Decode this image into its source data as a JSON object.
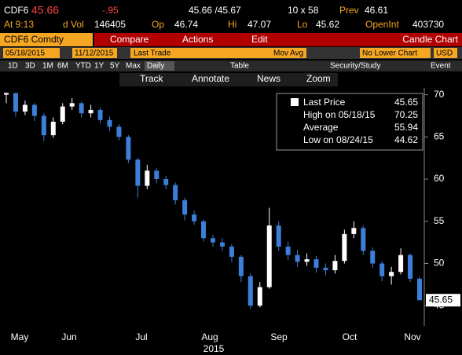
{
  "header": {
    "ticker": "CDF6",
    "last": "45.66",
    "change": "-.95",
    "bid_ask": "45.66 /45.67",
    "size": "10 x 58",
    "prev_label": "Prev",
    "prev": "46.61",
    "time": "At 9:13",
    "vol_label": "d Vol",
    "vol": "146405",
    "open_label": "Op",
    "open": "46.74",
    "high_label": "Hi",
    "high": "47.07",
    "low_label": "Lo",
    "low": "45.62",
    "oi_label": "OpenInt",
    "oi": "403730"
  },
  "toolbar": {
    "security": "CDF6 Comdty",
    "compare": "Compare",
    "actions": "Actions",
    "edit": "Edit",
    "chart_kind": "Candle Chart",
    "start": "05/18/2015",
    "end": "11/12/2015",
    "field": "Last Trade",
    "study": "Mov Avg",
    "lower": "No Lower Chart",
    "currency": "USD",
    "periods": [
      "1D",
      "3D",
      "1M",
      "6M",
      "YTD",
      "1Y",
      "5Y",
      "Max"
    ],
    "freq": "Daily",
    "table": "Table",
    "security_study": "Security/Study",
    "event": "Event",
    "tools": [
      "Track",
      "Annotate",
      "News",
      "Zoom"
    ]
  },
  "chart_data": {
    "type": "candlestick",
    "up_color": "#ffffff",
    "down_color": "#3b7fd9",
    "open": [
      70.0,
      70.2,
      68.0,
      68.8,
      67.5,
      65.2,
      66.8,
      68.6,
      69.0,
      67.8,
      68.2,
      67.0,
      66.2,
      65.0,
      62.3,
      59.2,
      61.0,
      60.0,
      59.3,
      57.5,
      55.8,
      55.0,
      53.0,
      52.5,
      52.0,
      50.8,
      48.5,
      45.0,
      47.2,
      54.5,
      52.0,
      51.0,
      50.2,
      50.5,
      49.5,
      49.2,
      50.3,
      53.5,
      54.2,
      51.5,
      50.0,
      48.5,
      49.0,
      51.0,
      48.2
    ],
    "high": [
      70.25,
      70.2,
      69.3,
      69.0,
      67.8,
      67.3,
      69.0,
      69.6,
      69.2,
      68.8,
      68.5,
      67.4,
      66.5,
      65.2,
      62.5,
      61.7,
      61.3,
      60.4,
      59.6,
      57.8,
      56.3,
      55.2,
      53.4,
      53.0,
      52.3,
      51.0,
      48.8,
      47.8,
      56.6,
      55.0,
      52.6,
      51.6,
      51.2,
      50.9,
      50.0,
      51.0,
      54.0,
      55.0,
      54.5,
      51.9,
      50.3,
      49.6,
      51.8,
      51.2,
      48.4
    ],
    "low": [
      69.0,
      67.4,
      67.6,
      66.9,
      64.5,
      64.9,
      66.5,
      68.2,
      67.3,
      67.3,
      66.6,
      65.7,
      64.6,
      61.9,
      57.8,
      58.8,
      59.5,
      58.8,
      57.0,
      55.1,
      54.6,
      52.6,
      52.0,
      51.5,
      50.2,
      47.8,
      44.62,
      44.8,
      47.0,
      51.5,
      50.4,
      49.6,
      49.7,
      48.9,
      48.6,
      48.8,
      50.0,
      53.0,
      51.0,
      49.5,
      47.9,
      47.5,
      48.7,
      47.8,
      45.62
    ],
    "close": [
      70.2,
      68.0,
      68.8,
      67.5,
      65.2,
      66.8,
      68.6,
      69.0,
      67.8,
      68.2,
      67.0,
      66.2,
      65.0,
      62.3,
      59.2,
      61.0,
      60.0,
      59.3,
      57.5,
      55.8,
      55.0,
      53.0,
      52.5,
      52.0,
      50.8,
      48.5,
      45.0,
      47.2,
      54.5,
      52.0,
      51.0,
      50.2,
      50.5,
      49.5,
      49.2,
      50.3,
      53.5,
      54.2,
      51.5,
      50.0,
      48.5,
      49.0,
      51.0,
      48.2,
      45.65
    ],
    "ylim": [
      42.6,
      70.8
    ],
    "yticks": [
      45,
      50,
      55,
      60,
      65,
      70
    ],
    "xtick_labels": [
      "May",
      "Jun",
      "Jul",
      "Aug",
      "Sep",
      "Oct",
      "Nov"
    ],
    "x_sublabel": "2015",
    "legend": [
      {
        "label": "Last Price",
        "value": "45.65"
      },
      {
        "label": "High on 05/18/15",
        "value": "70.25"
      },
      {
        "label": "Average",
        "value": "55.94"
      },
      {
        "label": "Low on 08/24/15",
        "value": "44.62"
      }
    ]
  }
}
